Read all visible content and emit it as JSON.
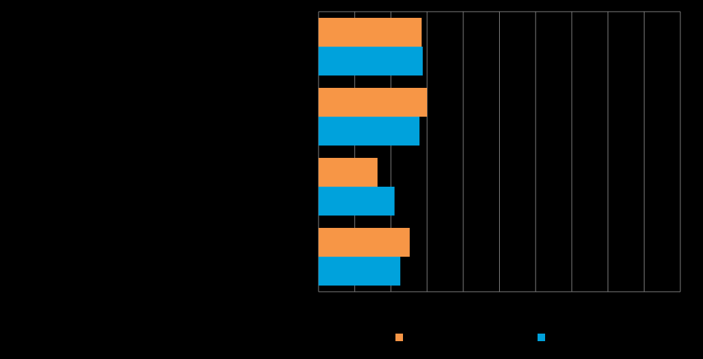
{
  "chart_data": {
    "type": "hbar",
    "categories": [
      null,
      null,
      null,
      null
    ],
    "series": [
      {
        "color": "#f79646",
        "values": [
          2.85,
          3.0,
          1.63,
          2.52
        ]
      },
      {
        "color": "#00a2dc",
        "values": [
          2.88,
          2.79,
          2.1,
          2.26
        ]
      }
    ],
    "xlim": [
      0,
      10
    ],
    "xticks": [
      0,
      1,
      2,
      3,
      4,
      5,
      6,
      7,
      8,
      9,
      10
    ],
    "grid": true
  }
}
